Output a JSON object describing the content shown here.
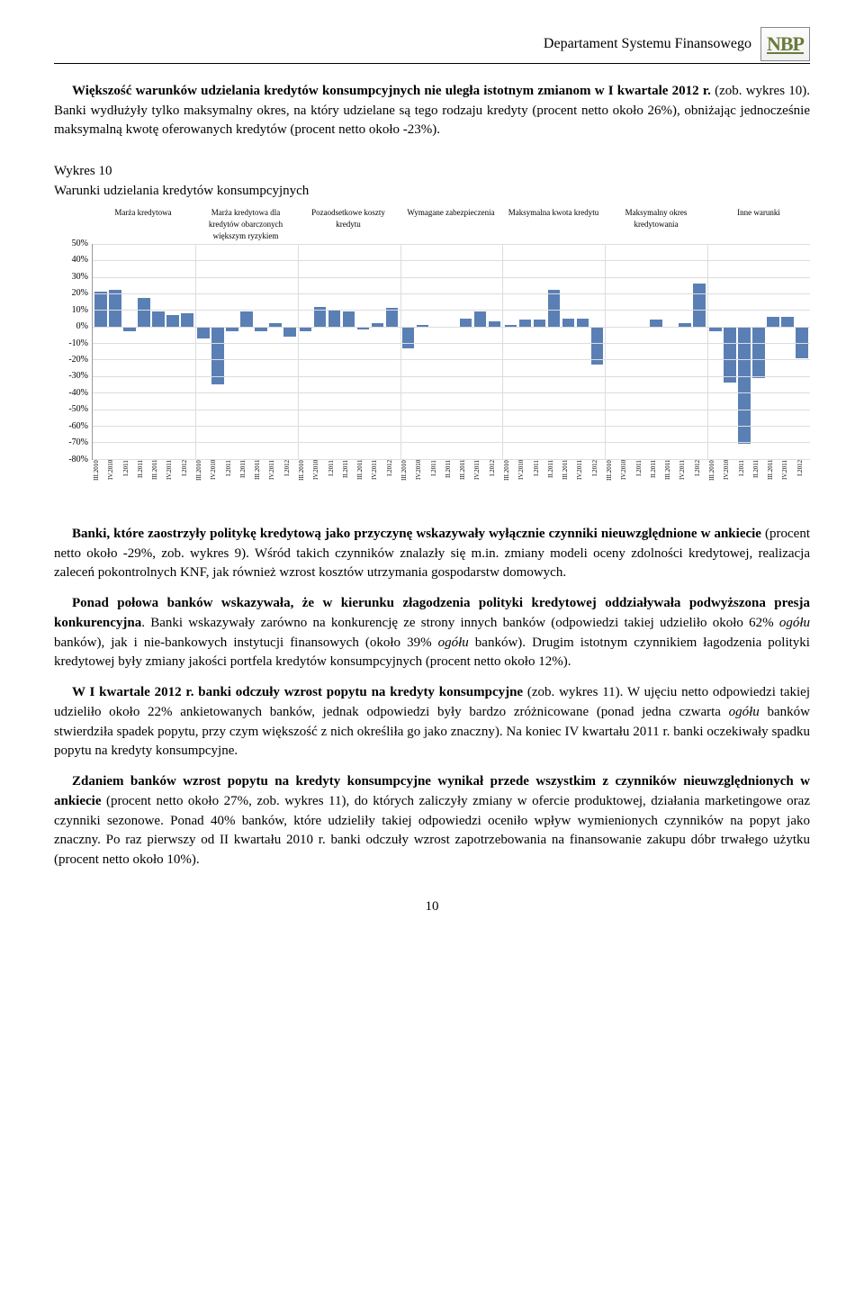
{
  "header": {
    "department": "Departament Systemu Finansowego",
    "logo_text": "NBP",
    "logo_color": "#6a7a3a"
  },
  "para1": {
    "bold": "Większość warunków udzielania kredytów konsumpcyjnych nie uległa istotnym zmianom w I kwartale 2012 r.",
    "rest": " (zob. wykres 10). Banki wydłużyły tylko maksymalny okres, na który udzielane są tego rodzaju kredyty (procent netto około 26%), obniżając jednocześnie maksymalną kwotę oferowanych kredytów (procent netto około -23%)."
  },
  "chart_title": "Wykres 10",
  "chart_subtitle": "Warunki udzielania kredytów konsumpcyjnych",
  "chart": {
    "type": "bar",
    "ylim": [
      -80,
      50
    ],
    "ytick_step": 10,
    "yticks": [
      "50%",
      "40%",
      "30%",
      "20%",
      "10%",
      "0%",
      "-10%",
      "-20%",
      "-30%",
      "-40%",
      "-50%",
      "-60%",
      "-70%",
      "-80%"
    ],
    "grid_color": "#dddddd",
    "bar_color": "#5a7fb5",
    "background_color": "#ffffff",
    "x_categories": [
      "III.2010",
      "IV.2010",
      "I.2011",
      "II.2011",
      "III.2011",
      "IV.2011",
      "I.2012"
    ],
    "groups": [
      {
        "label": "Marża kredytowa",
        "values": [
          21,
          22,
          -3,
          17,
          9,
          7,
          8
        ]
      },
      {
        "label": "Marża kredytowa dla kredytów obarczonych większym ryzykiem",
        "values": [
          -7,
          -35,
          -3,
          9,
          -3,
          2,
          -6
        ]
      },
      {
        "label": "Pozaodsetkowe koszty kredytu",
        "values": [
          -3,
          12,
          10,
          9,
          -2,
          2,
          11
        ]
      },
      {
        "label": "Wymagane zabezpieczenia",
        "values": [
          -13,
          1,
          0,
          0,
          5,
          9,
          3
        ]
      },
      {
        "label": "Maksymalna kwota kredytu",
        "values": [
          1,
          4,
          4,
          22,
          5,
          5,
          -23
        ]
      },
      {
        "label": "Maksymalny okres kredytowania",
        "values": [
          0,
          0,
          0,
          4,
          0,
          2,
          26
        ]
      },
      {
        "label": "Inne warunki",
        "values": [
          -3,
          -34,
          -71,
          -31,
          6,
          6,
          -19
        ]
      }
    ]
  },
  "para2": {
    "bold": "Banki, które zaostrzyły politykę kredytową jako przyczynę wskazywały wyłącznie czynniki nieuwzględ­nione w ankiecie",
    "rest": " (procent netto około -29%, zob. wykres 9). Wśród takich czynników znalazły się m.in. zmiany modeli oceny zdolności kredytowej, realizacja zaleceń pokontrolnych KNF, jak również wzrost kosztów utrzyma­nia gospodarstw domowych."
  },
  "para3": {
    "bold": "Ponad połowa banków wskazywała, że w kierunku złagodzenia polityki kredytowej oddziaływała podwyż­szona presja konkurencyjna",
    "mid1": ". Banki wskazywały zarówno na konkurencję ze strony innych banków (odpowiedzi takiej udzieliło około 62% ",
    "italic1": "ogółu",
    "mid2": " banków), jak i nie-bankowych instytucji finansowych (około 39% ",
    "italic2": "ogółu",
    "rest": " banków). Drugim istotnym czynnikiem łagodzenia polityki kredytowej były zmiany jakości portfela kredytów konsumpcyj­nych (procent netto około 12%)."
  },
  "para4": {
    "bold": "W I kwartale 2012 r. banki odczuły wzrost popytu na kredyty konsumpcyjne",
    "mid1": " (zob. wykres 11). W ujęciu netto odpowiedzi takiej udzieliło około 22% ankietowanych banków, jednak odpowiedzi były bardzo zróżnicowane (ponad jedna czwarta ",
    "italic1": "ogółu",
    "rest": " banków stwierdziła spadek popytu, przy czym większość z nich określiła go jako znaczny). Na koniec IV kwartału 2011 r. banki oczekiwały spadku popytu na kredyty konsumpcyjne."
  },
  "para5": {
    "bold": "Zdaniem banków wzrost popytu na kredyty konsumpcyjne wynikał przede wszystkim z czynników nie­uwzględnionych w ankiecie",
    "rest": " (procent netto około 27%, zob. wykres 11), do których zaliczyły zmiany w ofercie produktowej, działania marketingowe oraz czynniki sezonowe. Ponad 40% banków, które udzieliły takiej odpo­wiedzi oceniło wpływ wymienionych czynników na popyt jako znaczny. Po raz pierwszy od II kwartału 2010 r. banki odczuły wzrost zapotrzebowania na finansowanie zakupu dóbr trwałego użytku (procent netto około 10%)."
  },
  "page_number": "10"
}
